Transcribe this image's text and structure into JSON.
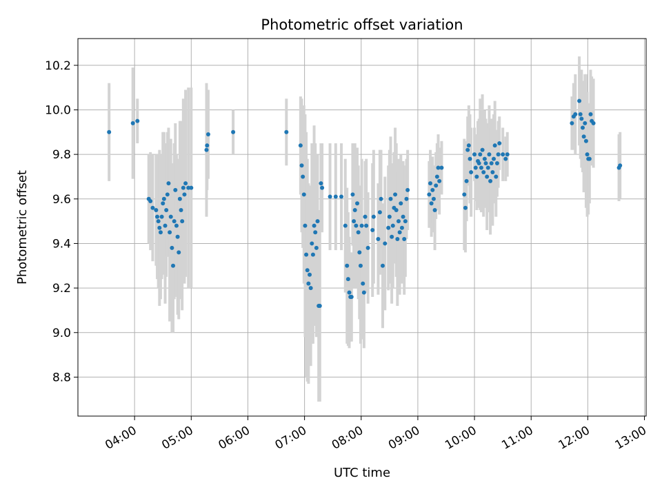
{
  "chart_data": {
    "type": "scatter",
    "title": "Photometric offset variation",
    "xlabel": "UTC time",
    "ylabel": "Photometric offset",
    "x_unit": "hours UTC",
    "xlim": [
      3.0,
      13.03
    ],
    "ylim": [
      8.625,
      10.32
    ],
    "grid": true,
    "x_ticks": [
      4,
      5,
      6,
      7,
      8,
      9,
      10,
      11,
      12,
      13
    ],
    "x_tick_labels": [
      "04:00",
      "05:00",
      "06:00",
      "07:00",
      "08:00",
      "09:00",
      "10:00",
      "11:00",
      "12:00",
      "13:00"
    ],
    "y_ticks": [
      8.8,
      9.0,
      9.2,
      9.4,
      9.6,
      9.8,
      10.0,
      10.2
    ],
    "y_tick_labels": [
      "8.8",
      "9.0",
      "9.2",
      "9.4",
      "9.6",
      "9.8",
      "10.0",
      "10.2"
    ],
    "marker_color": "#1f77b4",
    "errorbar_color": "#d3d3d3",
    "series": [
      {
        "name": "",
        "x": [
          3.55,
          3.97,
          4.05,
          4.25,
          4.28,
          4.32,
          4.38,
          4.4,
          4.42,
          4.44,
          4.46,
          4.48,
          4.5,
          4.52,
          4.54,
          4.56,
          4.58,
          4.6,
          4.62,
          4.64,
          4.66,
          4.68,
          4.7,
          4.72,
          4.74,
          4.76,
          4.78,
          4.8,
          4.82,
          4.84,
          4.86,
          4.88,
          4.9,
          4.95,
          5.0,
          5.28,
          5.3,
          5.27,
          5.74,
          6.68,
          6.93,
          6.95,
          6.97,
          6.99,
          7.01,
          7.03,
          7.05,
          7.07,
          7.09,
          7.11,
          7.13,
          7.15,
          7.17,
          7.19,
          7.21,
          7.23,
          7.25,
          7.27,
          7.29,
          7.31,
          7.45,
          7.55,
          7.65,
          7.72,
          7.75,
          7.77,
          7.79,
          7.81,
          7.83,
          7.85,
          7.87,
          7.89,
          7.91,
          7.93,
          7.95,
          7.97,
          7.99,
          8.01,
          8.03,
          8.05,
          8.07,
          8.09,
          8.12,
          8.2,
          8.22,
          8.3,
          8.33,
          8.35,
          8.38,
          8.42,
          8.48,
          8.5,
          8.52,
          8.54,
          8.56,
          8.58,
          8.6,
          8.62,
          8.64,
          8.66,
          8.68,
          8.7,
          8.72,
          8.74,
          8.76,
          8.78,
          8.8,
          8.82,
          9.2,
          9.22,
          9.24,
          9.26,
          9.28,
          9.3,
          9.32,
          9.34,
          9.36,
          9.38,
          9.42,
          9.82,
          9.84,
          9.86,
          9.88,
          9.9,
          9.92,
          9.94,
          10.0,
          10.02,
          10.04,
          10.06,
          10.08,
          10.1,
          10.12,
          10.14,
          10.16,
          10.18,
          10.2,
          10.22,
          10.24,
          10.26,
          10.28,
          10.3,
          10.32,
          10.34,
          10.36,
          10.38,
          10.4,
          10.42,
          10.44,
          10.5,
          10.55,
          10.58,
          11.72,
          11.75,
          11.78,
          11.85,
          11.87,
          11.89,
          11.91,
          11.93,
          11.95,
          11.97,
          11.99,
          12.01,
          12.03,
          12.05,
          12.07,
          12.1,
          12.55,
          12.57
        ],
        "y": [
          9.9,
          9.94,
          9.95,
          9.6,
          9.59,
          9.56,
          9.55,
          9.52,
          9.5,
          9.47,
          9.45,
          9.52,
          9.58,
          9.6,
          9.48,
          9.55,
          9.62,
          9.67,
          9.45,
          9.52,
          9.38,
          9.3,
          9.5,
          9.64,
          9.48,
          9.43,
          9.36,
          9.6,
          9.55,
          9.5,
          9.65,
          9.62,
          9.67,
          9.65,
          9.65,
          9.84,
          9.89,
          9.82,
          9.9,
          9.9,
          9.84,
          9.75,
          9.7,
          9.62,
          9.48,
          9.35,
          9.28,
          9.22,
          9.26,
          9.2,
          9.4,
          9.35,
          9.48,
          9.45,
          9.38,
          9.5,
          9.12,
          9.12,
          9.67,
          9.65,
          9.61,
          9.61,
          9.61,
          9.48,
          9.3,
          9.24,
          9.18,
          9.16,
          9.16,
          9.62,
          9.5,
          9.55,
          9.48,
          9.58,
          9.45,
          9.36,
          9.3,
          9.48,
          9.22,
          9.18,
          9.52,
          9.48,
          9.38,
          9.46,
          9.52,
          9.42,
          9.54,
          9.6,
          9.3,
          9.4,
          9.47,
          9.52,
          9.6,
          9.43,
          9.48,
          9.56,
          9.62,
          9.55,
          9.42,
          9.5,
          9.45,
          9.58,
          9.47,
          9.52,
          9.42,
          9.5,
          9.6,
          9.64,
          9.62,
          9.67,
          9.58,
          9.64,
          9.6,
          9.55,
          9.66,
          9.7,
          9.74,
          9.68,
          9.74,
          9.62,
          9.56,
          9.68,
          9.82,
          9.84,
          9.78,
          9.72,
          9.8,
          9.74,
          9.7,
          9.77,
          9.76,
          9.8,
          9.74,
          9.82,
          9.72,
          9.78,
          9.76,
          9.7,
          9.74,
          9.8,
          9.68,
          9.76,
          9.72,
          9.78,
          9.84,
          9.7,
          9.76,
          9.8,
          9.85,
          9.8,
          9.78,
          9.8,
          9.94,
          9.97,
          9.98,
          10.04,
          9.98,
          9.96,
          9.92,
          9.88,
          9.94,
          9.86,
          9.8,
          9.78,
          9.78,
          9.98,
          9.95,
          9.94,
          9.74,
          9.75
        ],
        "yerr": [
          0.22,
          0.25,
          0.1,
          0.2,
          0.22,
          0.24,
          0.25,
          0.28,
          0.3,
          0.35,
          0.3,
          0.28,
          0.32,
          0.3,
          0.35,
          0.3,
          0.28,
          0.25,
          0.4,
          0.35,
          0.38,
          0.3,
          0.35,
          0.3,
          0.32,
          0.35,
          0.3,
          0.35,
          0.4,
          0.4,
          0.4,
          0.4,
          0.42,
          0.45,
          0.45,
          0.2,
          0.2,
          0.3,
          0.1,
          0.15,
          0.22,
          0.3,
          0.32,
          0.4,
          0.5,
          0.55,
          0.5,
          0.45,
          0.4,
          0.35,
          0.45,
          0.4,
          0.45,
          0.4,
          0.4,
          0.3,
          0.43,
          0.43,
          0.18,
          0.2,
          0.24,
          0.24,
          0.24,
          0.3,
          0.35,
          0.3,
          0.25,
          0.2,
          0.2,
          0.23,
          0.3,
          0.3,
          0.28,
          0.25,
          0.3,
          0.3,
          0.35,
          0.3,
          0.25,
          0.25,
          0.25,
          0.3,
          0.25,
          0.3,
          0.3,
          0.25,
          0.28,
          0.22,
          0.28,
          0.3,
          0.28,
          0.3,
          0.28,
          0.3,
          0.28,
          0.25,
          0.3,
          0.3,
          0.3,
          0.28,
          0.28,
          0.22,
          0.25,
          0.25,
          0.25,
          0.25,
          0.18,
          0.18,
          0.15,
          0.15,
          0.15,
          0.15,
          0.15,
          0.18,
          0.15,
          0.15,
          0.15,
          0.15,
          0.12,
          0.25,
          0.2,
          0.18,
          0.15,
          0.18,
          0.2,
          0.2,
          0.12,
          0.15,
          0.15,
          0.18,
          0.2,
          0.25,
          0.2,
          0.25,
          0.2,
          0.22,
          0.2,
          0.24,
          0.2,
          0.22,
          0.24,
          0.2,
          0.24,
          0.2,
          0.2,
          0.18,
          0.15,
          0.15,
          0.12,
          0.12,
          0.1,
          0.1,
          0.12,
          0.15,
          0.18,
          0.2,
          0.2,
          0.22,
          0.2,
          0.25,
          0.22,
          0.3,
          0.28,
          0.25,
          0.2,
          0.2,
          0.2,
          0.2,
          0.15,
          0.15
        ]
      }
    ]
  }
}
